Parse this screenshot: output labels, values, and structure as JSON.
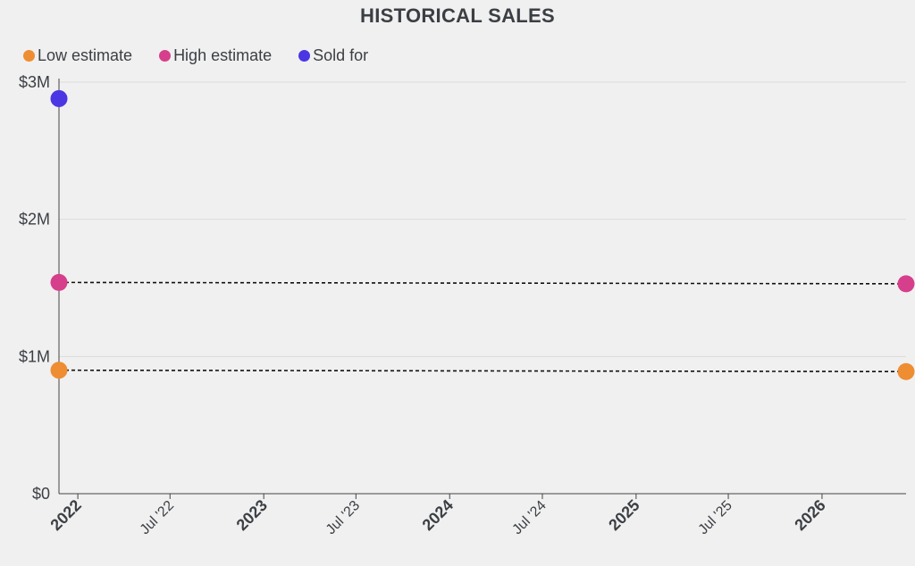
{
  "chart_data": {
    "type": "scatter",
    "title": "HISTORICAL SALES",
    "xlabel": "",
    "ylabel": "",
    "x_ticks": [
      "2022",
      "Jul '22",
      "2023",
      "Jul '23",
      "2024",
      "Jul '24",
      "2025",
      "Jul '25",
      "2026"
    ],
    "x_tick_dates": [
      "2022-01-01",
      "2022-07-01",
      "2023-01-01",
      "2023-07-01",
      "2024-01-01",
      "2024-07-01",
      "2025-01-01",
      "2025-07-01",
      "2026-01-01"
    ],
    "major_ticks": [
      "2022",
      "2023",
      "2024",
      "2025",
      "2026"
    ],
    "xlim": [
      "2021-11-25",
      "2026-06-15"
    ],
    "y_ticks": [
      "$0",
      "$1M",
      "$2M",
      "$3M"
    ],
    "y_tick_values": [
      0,
      1000000,
      2000000,
      3000000
    ],
    "ylim": [
      0,
      3000000
    ],
    "grid": "horizontal",
    "legend_position": "top-left",
    "series": [
      {
        "name": "Low estimate",
        "color": "#ee8d32",
        "points": [
          {
            "x": "2021-11-25",
            "y": 900000
          },
          {
            "x": "2026-06-15",
            "y": 890000
          }
        ],
        "connector": "dashed"
      },
      {
        "name": "High estimate",
        "color": "#d63f8b",
        "points": [
          {
            "x": "2021-11-25",
            "y": 1540000
          },
          {
            "x": "2026-06-15",
            "y": 1530000
          }
        ],
        "connector": "dashed"
      },
      {
        "name": "Sold for",
        "color": "#4b36e3",
        "points": [
          {
            "x": "2021-11-25",
            "y": 2880000
          }
        ]
      }
    ]
  }
}
